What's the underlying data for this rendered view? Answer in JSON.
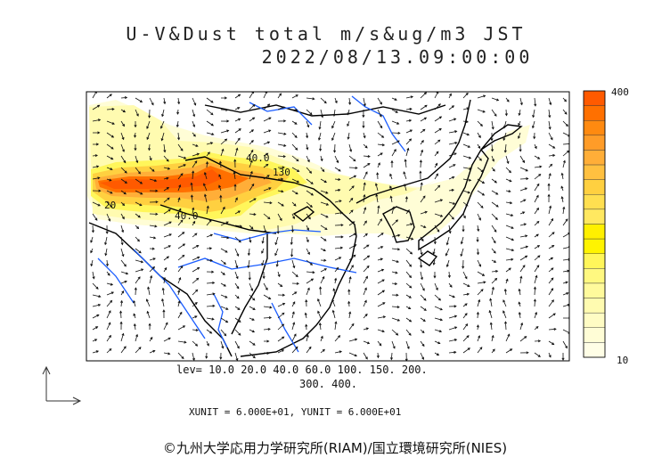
{
  "title": "U-V&Dust total m/s&ug/m3 JST",
  "datetime": "2022/08/13.09:00:00",
  "levels_line1": "lev= 10.0 20.0 40.0 60.0 100. 150. 200.",
  "levels_line2": "300. 400.",
  "units_text": "XUNIT = 6.000E+01, YUNIT = 6.000E+01",
  "credit": "©九州大学応用力学研究所(RIAM)/国立環境研究所(NIES)",
  "colorbar": {
    "max_label": "400",
    "min_label": "10",
    "colors": [
      "#ff5a00",
      "#ff7000",
      "#ff8a10",
      "#ff9c28",
      "#ffae38",
      "#ffc040",
      "#ffd040",
      "#ffdf50",
      "#ffe860",
      "#fff000",
      "#fff400",
      "#fff65a",
      "#fff880",
      "#fffa9c",
      "#fffbb0",
      "#fffcc4",
      "#fffdd6",
      "#fffee6"
    ]
  },
  "contour_labels": [
    "40.0",
    "130",
    "40.0",
    "20"
  ],
  "colors": {
    "coast": "#000000",
    "river": "#1a5cff",
    "arrow": "#111111"
  }
}
